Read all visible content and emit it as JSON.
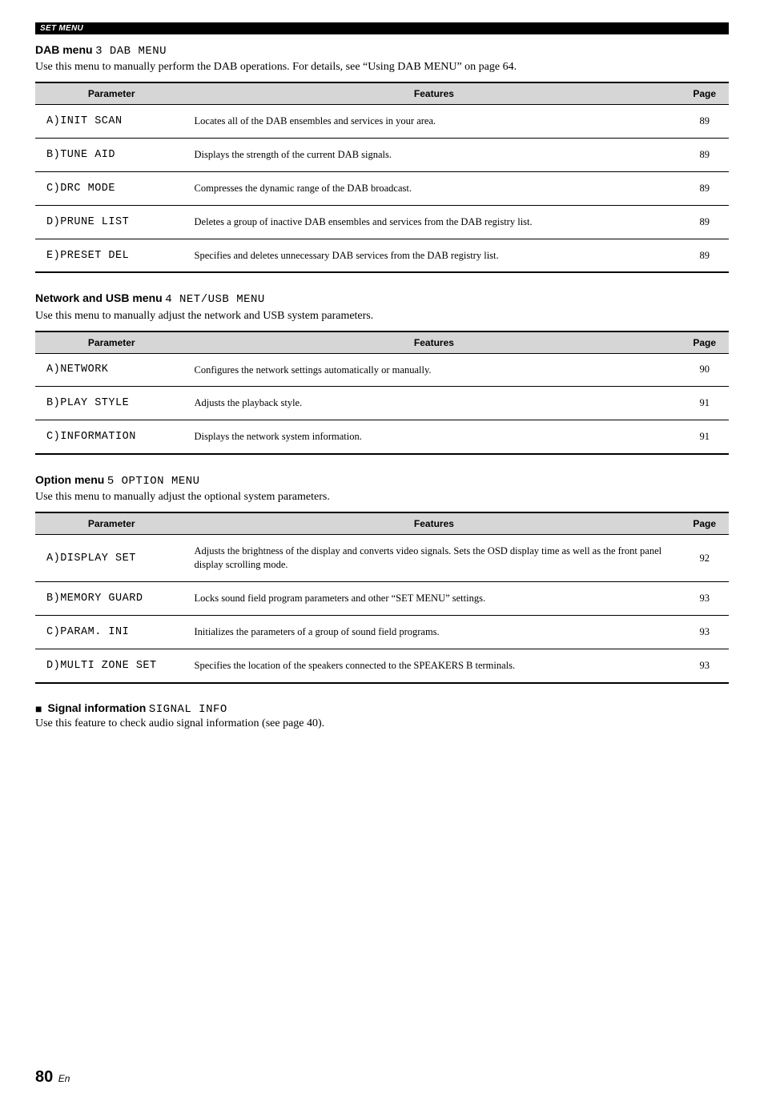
{
  "sectionBar": "SET MENU",
  "dab": {
    "headingBold": "DAB menu",
    "headingLcd": "3 DAB MENU",
    "intro": "Use this menu to manually perform the DAB operations. For details, see “Using DAB MENU” on page 64.",
    "cols": {
      "param": "Parameter",
      "feat": "Features",
      "page": "Page"
    },
    "rows": [
      {
        "p": "A)INIT SCAN",
        "f": "Locates all of the DAB ensembles and services in your area.",
        "pg": "89"
      },
      {
        "p": "B)TUNE AID",
        "f": "Displays the strength of the current DAB signals.",
        "pg": "89"
      },
      {
        "p": "C)DRC MODE",
        "f": "Compresses the dynamic range of the DAB broadcast.",
        "pg": "89"
      },
      {
        "p": "D)PRUNE LIST",
        "f": "Deletes a group of inactive DAB ensembles and services from the DAB registry list.",
        "pg": "89"
      },
      {
        "p": "E)PRESET DEL",
        "f": "Specifies and deletes unnecessary DAB services from the DAB registry list.",
        "pg": "89"
      }
    ]
  },
  "net": {
    "headingBold": "Network and USB menu",
    "headingLcd": "4 NET/USB MENU",
    "intro": "Use this menu to manually adjust the network and USB system parameters.",
    "cols": {
      "param": "Parameter",
      "feat": "Features",
      "page": "Page"
    },
    "rows": [
      {
        "p": "A)NETWORK",
        "f": "Configures the network settings automatically or manually.",
        "pg": "90"
      },
      {
        "p": "B)PLAY STYLE",
        "f": "Adjusts the playback style.",
        "pg": "91"
      },
      {
        "p": "C)INFORMATION",
        "f": "Displays the network system information.",
        "pg": "91"
      }
    ]
  },
  "opt": {
    "headingBold": "Option menu",
    "headingLcd": "5 OPTION MENU",
    "intro": "Use this menu to manually adjust the optional system parameters.",
    "cols": {
      "param": "Parameter",
      "feat": "Features",
      "page": "Page"
    },
    "rows": [
      {
        "p": "A)DISPLAY SET",
        "f": "Adjusts the brightness of the display and converts video signals. Sets the OSD display time as well as the front panel display scrolling mode.",
        "pg": "92"
      },
      {
        "p": "B)MEMORY GUARD",
        "f": "Locks sound field program parameters and other “SET MENU” settings.",
        "pg": "93"
      },
      {
        "p": "C)PARAM. INI",
        "f": "Initializes the parameters of a group of sound field programs.",
        "pg": "93"
      },
      {
        "p": "D)MULTI ZONE SET",
        "f": "Specifies the location of the speakers connected to the SPEAKERS B terminals.",
        "pg": "93"
      }
    ]
  },
  "signal": {
    "square": "■",
    "headingBold": "Signal information",
    "headingLcd": "SIGNAL INFO",
    "intro": "Use this feature to check audio signal information (see page 40)."
  },
  "foot": {
    "num": "80",
    "en": "En"
  }
}
